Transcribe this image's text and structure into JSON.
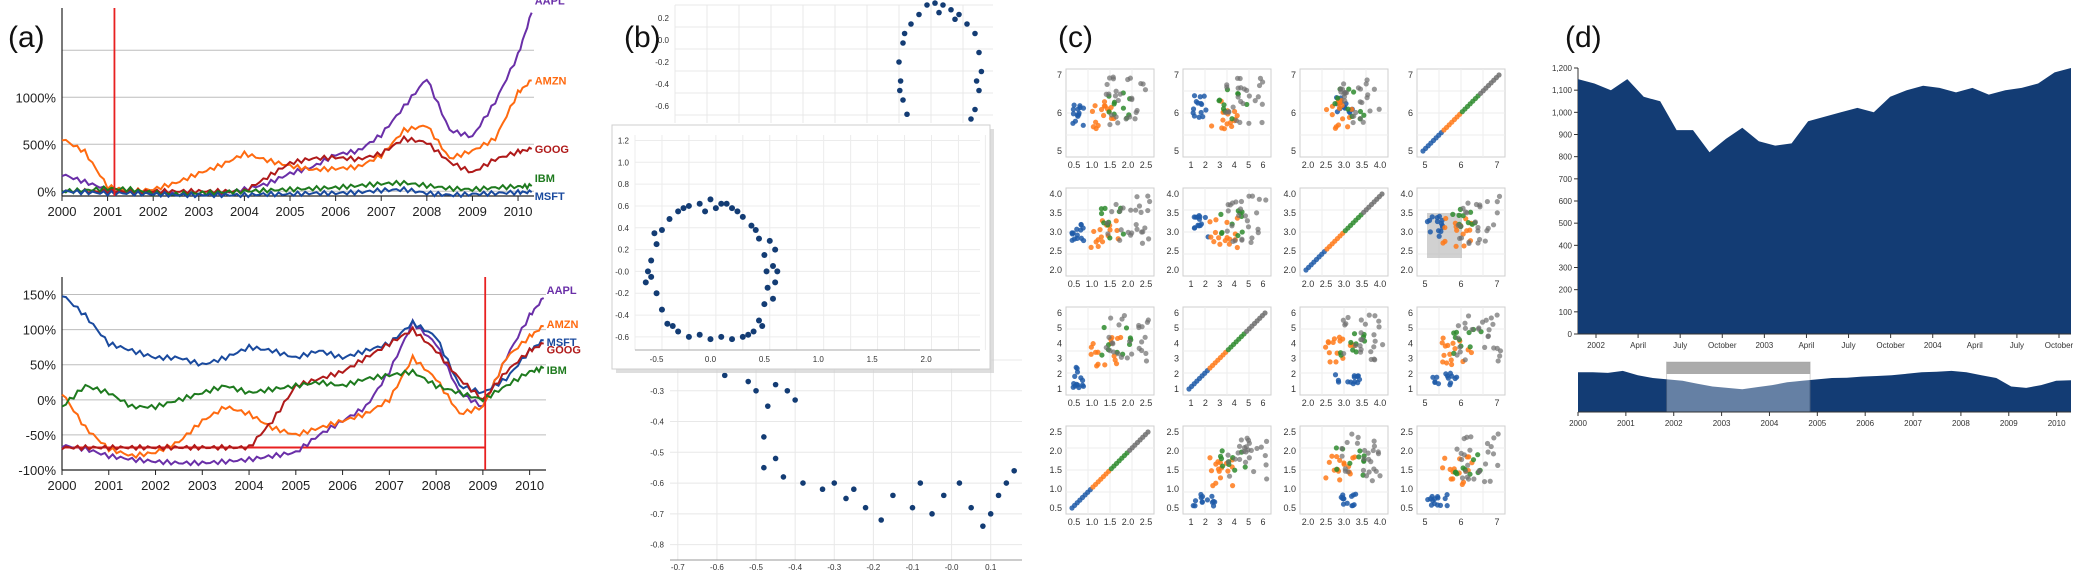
{
  "panels": {
    "a": "(a)",
    "b": "(b)",
    "c": "(c)",
    "d": "(d)"
  },
  "colors": {
    "AAPL": "#6a2fa8",
    "AMZN": "#ff6a10",
    "GOOG": "#b01a1a",
    "MSFT": "#1a4a9e",
    "IBM": "#1e7a1e",
    "navy": "#133c74",
    "red": "#e82020"
  },
  "chart_data": [
    {
      "id": "a-top",
      "type": "line",
      "title": "",
      "xlabel": "",
      "ylabel": "",
      "x": [
        2000,
        2000.5,
        2001,
        2001.5,
        2002,
        2002.5,
        2003,
        2003.5,
        2004,
        2004.5,
        2005,
        2005.5,
        2006,
        2006.5,
        2007,
        2007.5,
        2008,
        2008.5,
        2009,
        2009.5,
        2010,
        2010.3
      ],
      "xticks": [
        "2000",
        "2001",
        "2002",
        "2003",
        "2004",
        "2005",
        "2006",
        "2007",
        "2008",
        "2009",
        "2010"
      ],
      "yticks": [
        "0%",
        "500%",
        "1000%"
      ],
      "ylim": [
        -50,
        1950
      ],
      "marker_x": 2001.15,
      "series": [
        {
          "name": "AAPL",
          "values": [
            180,
            100,
            20,
            -20,
            -10,
            -30,
            -40,
            -20,
            20,
            80,
            190,
            260,
            390,
            430,
            600,
            900,
            1200,
            650,
            580,
            950,
            1450,
            1900
          ]
        },
        {
          "name": "AMZN",
          "values": [
            560,
            420,
            50,
            0,
            20,
            90,
            190,
            280,
            400,
            330,
            270,
            230,
            240,
            260,
            380,
            650,
            700,
            350,
            430,
            560,
            1050,
            1180
          ]
        },
        {
          "name": "GOOG",
          "values": [
            0,
            0,
            0,
            0,
            0,
            0,
            0,
            0,
            0,
            150,
            300,
            350,
            360,
            340,
            400,
            560,
            520,
            310,
            200,
            340,
            420,
            450
          ]
        },
        {
          "name": "IBM",
          "values": [
            0,
            10,
            30,
            20,
            -20,
            -30,
            -20,
            -10,
            0,
            10,
            20,
            30,
            40,
            60,
            80,
            90,
            60,
            30,
            20,
            40,
            50,
            55
          ]
        },
        {
          "name": "MSFT",
          "values": [
            0,
            -10,
            -20,
            -20,
            -30,
            -40,
            -40,
            -40,
            -40,
            -30,
            -30,
            -20,
            -20,
            -10,
            10,
            20,
            -20,
            -40,
            -30,
            -20,
            -10,
            -10
          ]
        }
      ]
    },
    {
      "id": "a-bottom",
      "type": "line",
      "title": "",
      "xlabel": "",
      "ylabel": "",
      "x": [
        2000,
        2000.5,
        2001,
        2001.5,
        2002,
        2002.5,
        2003,
        2003.5,
        2004,
        2004.5,
        2005,
        2005.5,
        2006,
        2006.5,
        2007,
        2007.5,
        2008,
        2008.5,
        2009,
        2009.5,
        2010,
        2010.3
      ],
      "xticks": [
        "2000",
        "2001",
        "2002",
        "2003",
        "2004",
        "2005",
        "2006",
        "2007",
        "2008",
        "2009",
        "2010"
      ],
      "yticks": [
        "150%",
        "100%",
        "50%",
        "0%",
        "-50%",
        "-100%"
      ],
      "ylim": [
        -100,
        175
      ],
      "marker_x": 2009.05,
      "baseline_y": -68,
      "series": [
        {
          "name": "AAPL",
          "values": [
            -65,
            -70,
            -80,
            -85,
            -88,
            -90,
            -90,
            -88,
            -85,
            -80,
            -75,
            -50,
            -30,
            -10,
            40,
            110,
            80,
            10,
            -10,
            60,
            120,
            145
          ]
        },
        {
          "name": "AMZN",
          "values": [
            10,
            -40,
            -70,
            -80,
            -75,
            -60,
            -30,
            -10,
            -20,
            -40,
            -50,
            -40,
            -30,
            -20,
            0,
            60,
            30,
            -20,
            -10,
            60,
            90,
            105
          ]
        },
        {
          "name": "MSFT",
          "values": [
            150,
            120,
            80,
            70,
            60,
            60,
            50,
            60,
            75,
            70,
            60,
            70,
            60,
            70,
            80,
            110,
            90,
            20,
            10,
            30,
            70,
            85
          ]
        },
        {
          "name": "GOOG",
          "values": [
            -68,
            -68,
            -68,
            -68,
            -68,
            -68,
            -68,
            -68,
            -68,
            -30,
            20,
            30,
            40,
            60,
            80,
            100,
            70,
            30,
            0,
            40,
            70,
            80
          ]
        },
        {
          "name": "IBM",
          "values": [
            -10,
            20,
            10,
            -10,
            -10,
            0,
            10,
            20,
            10,
            15,
            20,
            25,
            20,
            30,
            35,
            40,
            20,
            10,
            0,
            20,
            40,
            45
          ]
        }
      ]
    },
    {
      "id": "b-top",
      "type": "scatter",
      "title": "",
      "yticks": [
        "0.2",
        "0.0",
        "-0.2",
        "-0.4",
        "-0.6"
      ],
      "points": [
        [
          -0.1,
          0.6
        ],
        [
          0.0,
          0.62
        ],
        [
          0.1,
          0.6
        ],
        [
          0.2,
          0.55
        ],
        [
          0.3,
          0.5
        ],
        [
          0.4,
          0.4
        ],
        [
          0.5,
          0.3
        ],
        [
          0.55,
          0.1
        ],
        [
          0.58,
          -0.1
        ],
        [
          0.55,
          -0.3
        ],
        [
          0.5,
          -0.5
        ],
        [
          0.45,
          -0.6
        ],
        [
          -0.2,
          0.5
        ],
        [
          -0.3,
          0.4
        ],
        [
          -0.4,
          0.2
        ],
        [
          -0.45,
          0.0
        ],
        [
          -0.43,
          -0.2
        ],
        [
          -0.4,
          -0.4
        ],
        [
          -0.35,
          -0.55
        ],
        [
          0.05,
          0.52
        ],
        [
          0.25,
          0.45
        ],
        [
          0.52,
          -0.2
        ],
        [
          -0.38,
          0.3
        ],
        [
          -0.44,
          -0.3
        ]
      ]
    },
    {
      "id": "b-zoom",
      "type": "scatter",
      "title": "",
      "xticks": [
        "-0.5",
        "0.0",
        "0.5",
        "1.0",
        "1.5",
        "2.0"
      ],
      "yticks": [
        "1.2",
        "1.0",
        "0.8",
        "0.6",
        "0.4",
        "0.2",
        "-0.0",
        "-0.2",
        "-0.4",
        "-0.6"
      ],
      "xlim": [
        -0.7,
        2.5
      ],
      "ylim": [
        -0.72,
        1.25
      ],
      "points": [
        [
          -0.1,
          0.62
        ],
        [
          0.0,
          0.66
        ],
        [
          0.1,
          0.62
        ],
        [
          0.2,
          0.58
        ],
        [
          0.3,
          0.5
        ],
        [
          0.38,
          0.42
        ],
        [
          0.45,
          0.3
        ],
        [
          0.5,
          0.15
        ],
        [
          0.52,
          0.0
        ],
        [
          0.53,
          -0.15
        ],
        [
          0.5,
          -0.3
        ],
        [
          0.45,
          -0.45
        ],
        [
          0.4,
          -0.55
        ],
        [
          0.3,
          -0.6
        ],
        [
          0.2,
          -0.62
        ],
        [
          0.1,
          -0.6
        ],
        [
          0.0,
          -0.62
        ],
        [
          -0.1,
          -0.58
        ],
        [
          -0.2,
          -0.6
        ],
        [
          -0.3,
          -0.55
        ],
        [
          -0.4,
          -0.48
        ],
        [
          -0.45,
          -0.35
        ],
        [
          -0.5,
          -0.2
        ],
        [
          -0.55,
          -0.05
        ],
        [
          -0.55,
          0.1
        ],
        [
          -0.5,
          0.25
        ],
        [
          -0.45,
          0.38
        ],
        [
          -0.38,
          0.48
        ],
        [
          -0.3,
          0.55
        ],
        [
          -0.2,
          0.6
        ],
        [
          0.55,
          0.28
        ],
        [
          0.58,
          0.05
        ],
        [
          0.6,
          -0.1
        ],
        [
          0.48,
          -0.5
        ],
        [
          0.25,
          0.55
        ],
        [
          0.6,
          0.2
        ],
        [
          -0.58,
          0.0
        ],
        [
          -0.52,
          0.35
        ],
        [
          0.35,
          -0.58
        ],
        [
          -0.05,
          0.55
        ],
        [
          0.05,
          0.58
        ],
        [
          0.15,
          0.62
        ],
        [
          -0.25,
          0.58
        ],
        [
          0.42,
          0.38
        ],
        [
          -0.35,
          -0.5
        ],
        [
          0.58,
          -0.25
        ],
        [
          0.62,
          0.0
        ],
        [
          -0.6,
          -0.1
        ]
      ]
    },
    {
      "id": "b-bottom",
      "type": "scatter",
      "title": "",
      "xticks": [
        "-0.7",
        "-0.6",
        "-0.5",
        "-0.4",
        "-0.3",
        "-0.2",
        "-0.1",
        "-0.0",
        "0.1"
      ],
      "yticks": [
        "-0.2",
        "-0.3",
        "-0.4",
        "-0.5",
        "-0.6",
        "-0.7",
        "-0.8"
      ],
      "xlim": [
        -0.72,
        0.18
      ],
      "ylim": [
        -0.88,
        -0.04
      ],
      "points": [
        [
          -0.65,
          -0.1
        ],
        [
          -0.6,
          -0.15
        ],
        [
          -0.55,
          -0.2
        ],
        [
          -0.58,
          -0.25
        ],
        [
          -0.52,
          -0.27
        ],
        [
          -0.5,
          -0.3
        ],
        [
          -0.45,
          -0.28
        ],
        [
          -0.42,
          -0.3
        ],
        [
          -0.47,
          -0.35
        ],
        [
          -0.4,
          -0.33
        ],
        [
          -0.48,
          -0.45
        ],
        [
          -0.45,
          -0.52
        ],
        [
          -0.48,
          -0.55
        ],
        [
          -0.43,
          -0.58
        ],
        [
          -0.38,
          -0.6
        ],
        [
          -0.33,
          -0.62
        ],
        [
          -0.3,
          -0.6
        ],
        [
          -0.27,
          -0.65
        ],
        [
          -0.22,
          -0.68
        ],
        [
          -0.18,
          -0.72
        ],
        [
          -0.15,
          -0.64
        ],
        [
          -0.1,
          -0.68
        ],
        [
          -0.08,
          -0.6
        ],
        [
          -0.05,
          -0.7
        ],
        [
          -0.02,
          -0.64
        ],
        [
          0.02,
          -0.6
        ],
        [
          0.08,
          -0.74
        ],
        [
          0.12,
          -0.64
        ],
        [
          0.14,
          -0.6
        ],
        [
          0.16,
          -0.56
        ],
        [
          0.05,
          -0.68
        ],
        [
          -0.25,
          -0.62
        ],
        [
          0.1,
          -0.7
        ]
      ]
    },
    {
      "id": "c-splom",
      "type": "scatter",
      "title": "",
      "xtick_rows": [
        [
          "0.5",
          "1.0",
          "1.5",
          "2.0",
          "2.5"
        ],
        [
          "1",
          "2",
          "3",
          "4",
          "5",
          "6"
        ],
        [
          "2.0",
          "2.5",
          "3.0",
          "3.5",
          "4.0"
        ],
        [
          "5",
          "6",
          "7"
        ]
      ],
      "ytick_rows": [
        [
          "5",
          "6",
          "7"
        ],
        [
          "2.0",
          "2.5",
          "3.0",
          "3.5",
          "4.0"
        ],
        [
          "1",
          "2",
          "3",
          "4",
          "5",
          "6"
        ],
        [
          "0.5",
          "1.0",
          "1.5",
          "2.0",
          "2.5"
        ]
      ],
      "group_colors": [
        "#1f5aa8",
        "#ff7a1a",
        "#2e8b2e",
        "#6e6e6e"
      ]
    },
    {
      "id": "d-focus",
      "type": "area",
      "title": "",
      "yticks": [
        "0",
        "100",
        "200",
        "300",
        "400",
        "500",
        "600",
        "700",
        "800",
        "900",
        "1,000",
        "1,100",
        "1,200"
      ],
      "xticks": [
        "2002",
        "April",
        "July",
        "October",
        "2003",
        "April",
        "July",
        "October",
        "2004",
        "April",
        "July",
        "October"
      ],
      "ylim": [
        0,
        1200
      ],
      "values": [
        1150,
        1130,
        1100,
        1150,
        1070,
        1050,
        920,
        920,
        820,
        880,
        930,
        870,
        850,
        860,
        960,
        980,
        1000,
        1020,
        1000,
        1070,
        1100,
        1120,
        1110,
        1090,
        1110,
        1080,
        1100,
        1110,
        1130,
        1180,
        1200
      ]
    },
    {
      "id": "d-context",
      "type": "area",
      "title": "",
      "xticks": [
        "2000",
        "2001",
        "2002",
        "2003",
        "2004",
        "2005",
        "2006",
        "2007",
        "2008",
        "2009",
        "2010"
      ],
      "brush": [
        2001.85,
        2004.85
      ],
      "values": [
        1400,
        1400,
        1380,
        1450,
        1300,
        1200,
        1150,
        1100,
        1000,
        900,
        850,
        800,
        880,
        950,
        1050,
        1100,
        1150,
        1200,
        1210,
        1250,
        1270,
        1300,
        1350,
        1400,
        1420,
        1450,
        1400,
        1300,
        1200,
        900,
        850,
        950,
        1100,
        1120
      ]
    }
  ]
}
